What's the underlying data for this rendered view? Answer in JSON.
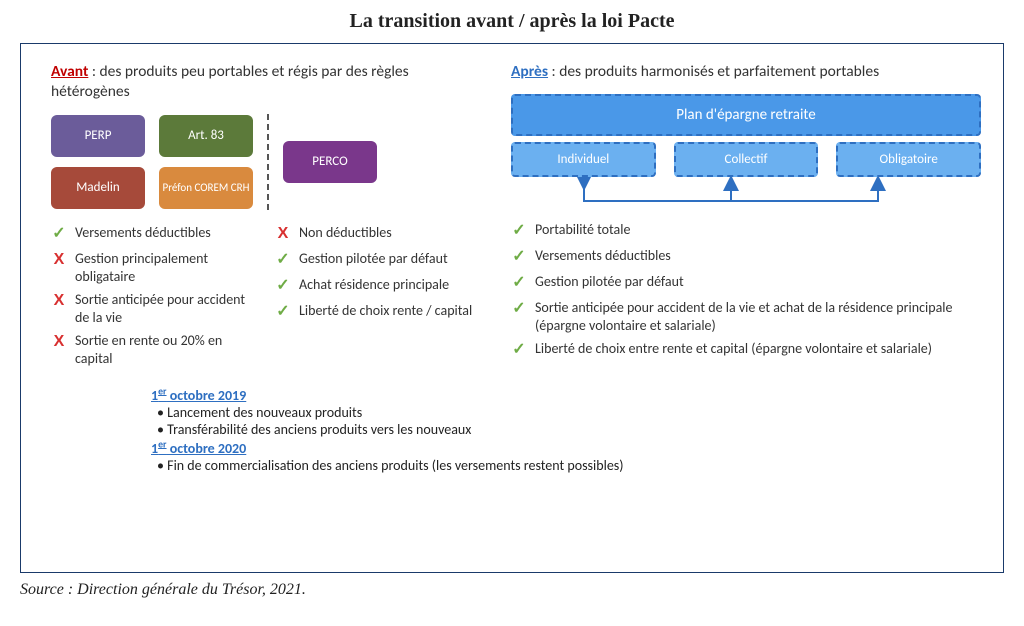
{
  "title": "La transition avant / après la loi Pacte",
  "avant": {
    "heading_lead": "Avant",
    "heading_rest": " : des produits peu portables et régis par des règles hétérogènes",
    "products": [
      {
        "label": "PERP",
        "bg": "#6b5c9a"
      },
      {
        "label": "Art. 83",
        "bg": "#5c7a3a"
      },
      {
        "label": "Madelin",
        "bg": "#a64a3a"
      },
      {
        "label": "Préfon COREM CRH",
        "bg": "#d98a3e",
        "small": true
      }
    ],
    "perco": {
      "label": "PERCO",
      "bg": "#7a378b"
    },
    "list_left": [
      {
        "ok": true,
        "text": "Versements déductibles"
      },
      {
        "ok": false,
        "text": "Gestion principalement obligataire"
      },
      {
        "ok": false,
        "text": "Sortie anticipée pour accident de la vie"
      },
      {
        "ok": false,
        "text": "Sortie en rente ou 20% en capital"
      }
    ],
    "list_right": [
      {
        "ok": false,
        "text": "Non déductibles"
      },
      {
        "ok": true,
        "text": "Gestion pilotée par défaut"
      },
      {
        "ok": true,
        "text": "Achat résidence principale"
      },
      {
        "ok": true,
        "text": "Liberté de choix rente / capital"
      }
    ]
  },
  "apres": {
    "heading_lead": "Après",
    "heading_rest": " : des produits harmonisés et parfaitement portables",
    "top_box": "Plan d'épargne retraite",
    "sub_boxes": [
      "Individuel",
      "Collectif",
      "Obligatoire"
    ],
    "box_border": "#2e6fc1",
    "box_bg_top": "#4a98e8",
    "box_bg_sub": "#6bb0f0",
    "list": [
      {
        "ok": true,
        "text": "Portabilité totale"
      },
      {
        "ok": true,
        "text": "Versements déductibles"
      },
      {
        "ok": true,
        "text": "Gestion pilotée par défaut"
      },
      {
        "ok": true,
        "text": "Sortie anticipée pour accident de la vie et achat de la résidence principale (épargne volontaire et salariale)"
      },
      {
        "ok": true,
        "text": "Liberté de choix entre rente et capital (épargne volontaire et salariale)"
      }
    ]
  },
  "timeline": {
    "date1_pre": "1",
    "date1_sup": "er",
    "date1_rest": " octobre 2019",
    "items1": [
      "Lancement des nouveaux produits",
      "Transférabilité des anciens produits vers les nouveaux"
    ],
    "date2_pre": "1",
    "date2_sup": "er",
    "date2_rest": " octobre 2020",
    "items2": [
      "Fin de commercialisation des anciens produits (les versements restent possibles)"
    ]
  },
  "source": "Source : Direction générale du Trésor, 2021.",
  "colors": {
    "frame_border": "#1a3a6a",
    "red": "#c00000",
    "blue": "#2e6fc1",
    "check_ok": "#6fac46",
    "check_no": "#d83030"
  }
}
